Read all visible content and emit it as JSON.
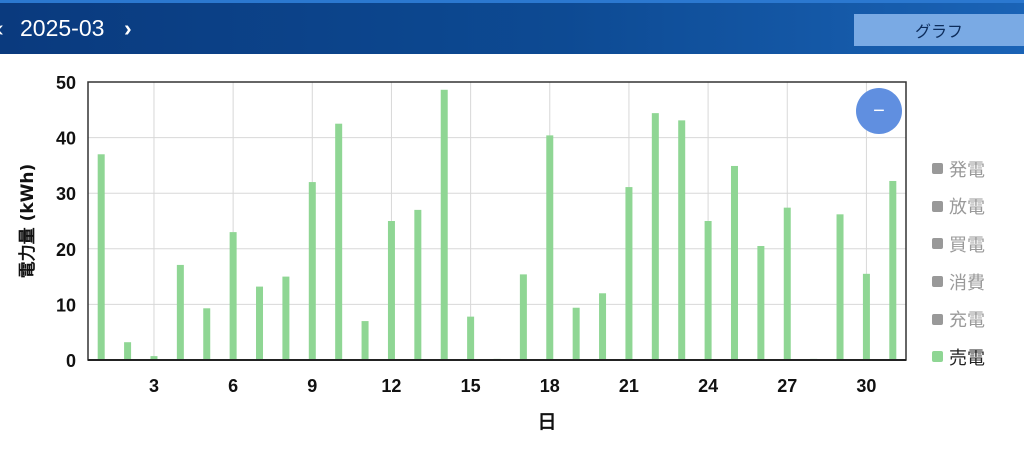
{
  "header": {
    "prev_icon": "chevron-left-icon",
    "month": "2025-03",
    "next_icon": "chevron-right-icon",
    "graph_button": "グラフ"
  },
  "zoom_button": {
    "icon": "minus-icon",
    "label": "−"
  },
  "legend": [
    {
      "label": "発電",
      "color": "#999999",
      "active": false
    },
    {
      "label": "放電",
      "color": "#999999",
      "active": false
    },
    {
      "label": "買電",
      "color": "#999999",
      "active": false
    },
    {
      "label": "消費",
      "color": "#999999",
      "active": false
    },
    {
      "label": "充電",
      "color": "#999999",
      "active": false
    },
    {
      "label": "売電",
      "color": "#8fd694",
      "active": true
    }
  ],
  "chart_data": {
    "type": "bar",
    "xlabel": "日",
    "ylabel": "電力量 (kWh)",
    "ylim": [
      0,
      50
    ],
    "xlim": [
      0.5,
      31.5
    ],
    "yticks": [
      0,
      10,
      20,
      30,
      40,
      50
    ],
    "xticks": [
      3,
      6,
      9,
      12,
      15,
      18,
      21,
      24,
      27,
      30
    ],
    "grid": true,
    "legend_position": "right",
    "series": [
      {
        "name": "売電",
        "color": "#8fd694",
        "x": [
          1,
          2,
          3,
          4,
          5,
          6,
          7,
          8,
          9,
          10,
          11,
          12,
          13,
          14,
          15,
          16,
          17,
          18,
          19,
          20,
          21,
          22,
          23,
          24,
          25,
          26,
          27,
          28,
          29,
          30,
          31
        ],
        "values": [
          37,
          3.2,
          0.7,
          17.1,
          9.3,
          23,
          13.2,
          15,
          32,
          42.5,
          7,
          25,
          27,
          48.6,
          7.8,
          0.2,
          15.4,
          40.4,
          9.4,
          12,
          31.1,
          44.4,
          43.1,
          25,
          34.9,
          20.5,
          27.4,
          0.2,
          26.2,
          15.5,
          32.2
        ]
      }
    ]
  }
}
